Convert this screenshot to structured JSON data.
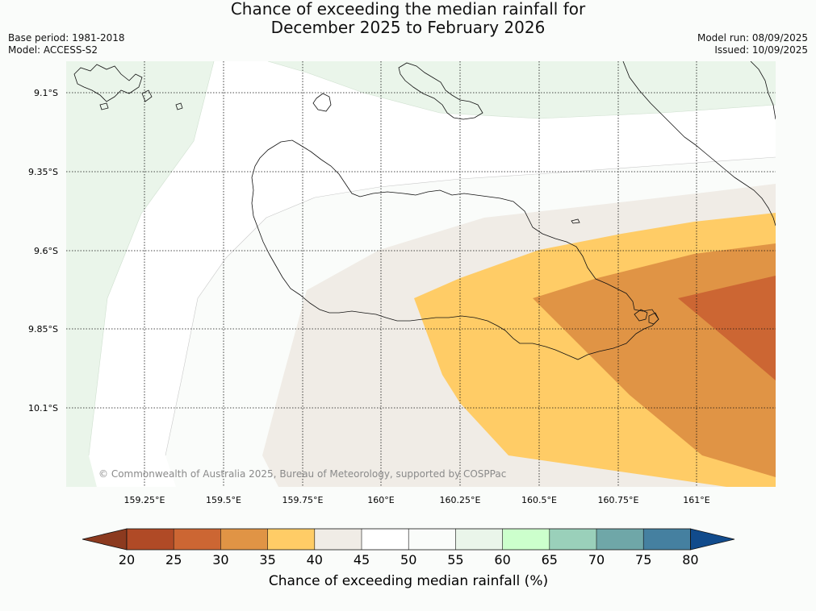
{
  "title": {
    "line1": "Chance of exceeding the median rainfall for",
    "line2": "December 2025 to February 2026"
  },
  "meta": {
    "base_period": "Base period: 1981-2018",
    "model": "Model: ACCESS-S2",
    "model_run": "Model run: 08/09/2025",
    "issued": "Issued: 10/09/2025"
  },
  "copyright": "© Commonwealth of Australia 2025, Bureau of Meteorology, supported by COSPPac",
  "map": {
    "lon_ticks": [
      "159.25°E",
      "159.5°E",
      "159.75°E",
      "160°E",
      "160.25°E",
      "160.5°E",
      "160.75°E",
      "161°E"
    ],
    "lat_ticks": [
      "9.1°S",
      "9.35°S",
      "9.6°S",
      "9.85°S",
      "10.1°S"
    ]
  },
  "colorbar": {
    "title": "Chance of exceeding median rainfall (%)",
    "labels": [
      "20",
      "25",
      "30",
      "35",
      "40",
      "45",
      "50",
      "55",
      "60",
      "65",
      "70",
      "75",
      "80"
    ],
    "colors": {
      "below_20": "#8c3a1f",
      "20_25": "#b04a26",
      "25_30": "#cc6633",
      "30_35": "#e09445",
      "35_40": "#ffcc66",
      "40_45": "#f0ece6",
      "45_50": "#ffffff",
      "50_55": "#fafcfa",
      "55_60": "#eaf5ea",
      "60_65": "#ccffcc",
      "65_70": "#9ad0ba",
      "70_75": "#6fa7a8",
      "75_80": "#4580a0",
      "above_80": "#114b8c"
    }
  }
}
